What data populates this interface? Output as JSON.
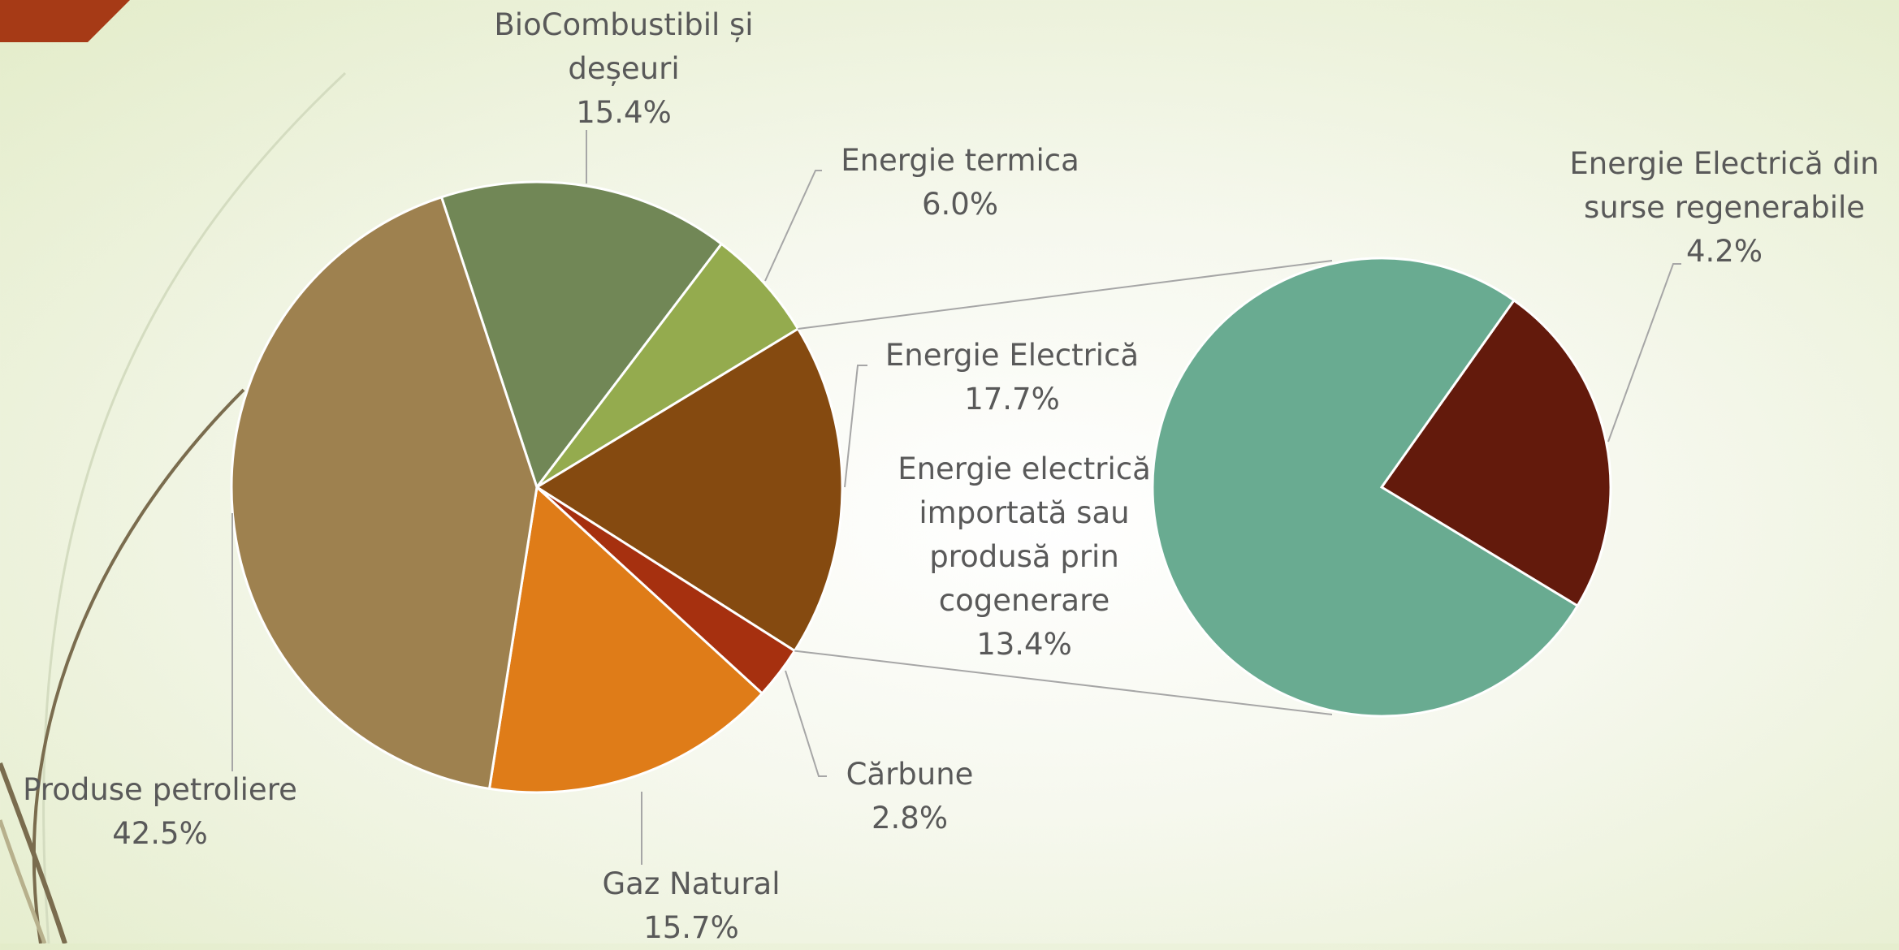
{
  "chart_data": {
    "type": "pie-of-pie",
    "categories": [
      "BioCombustibil și deșeuri",
      "Energie termica",
      "Energie Electrică",
      "Cărbune",
      "Gaz Natural",
      "Produse petroliere"
    ],
    "values": [
      15.4,
      6.0,
      17.7,
      2.8,
      15.7,
      42.5
    ],
    "value_labels": [
      "15.4%",
      "6.0%",
      "17.7%",
      "2.8%",
      "15.7%",
      "42.5%"
    ],
    "colors": [
      "#718756",
      "#94ab4e",
      "#854a10",
      "#a6300f",
      "#df7c18",
      "#9e814f"
    ],
    "secondary": {
      "categories": [
        "Energie Electrică din surse regenerabile",
        "Energie electrică importată sau produsă prin cogenerare"
      ],
      "values": [
        4.2,
        13.4
      ],
      "value_labels": [
        "4.2%",
        "13.4%"
      ],
      "colors": [
        "#631a0c",
        "#69ab91"
      ]
    }
  }
}
